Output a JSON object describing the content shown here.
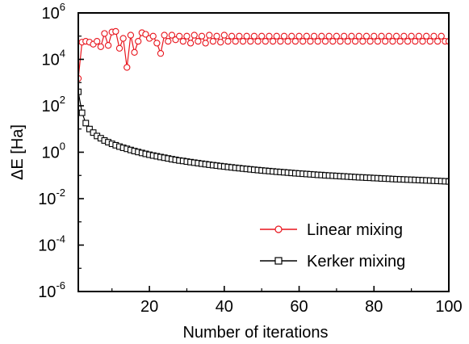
{
  "chart_data": {
    "type": "line",
    "xlabel": "Number of iterations",
    "ylabel": "ΔE [Ha]",
    "xlim": [
      1,
      100
    ],
    "ylim_log10": [
      -6,
      6
    ],
    "y_scale": "log",
    "x_ticks": [
      20,
      40,
      60,
      80,
      100
    ],
    "y_ticks": [
      {
        "base": "10",
        "exp": "6"
      },
      {
        "base": "10",
        "exp": "4"
      },
      {
        "base": "10",
        "exp": "2"
      },
      {
        "base": "10",
        "exp": "0"
      },
      {
        "base": "10",
        "exp": "-2"
      },
      {
        "base": "10",
        "exp": "-4"
      },
      {
        "base": "10",
        "exp": "-6"
      }
    ],
    "legend_position": "bottom-right",
    "series": [
      {
        "name": "Linear mixing",
        "color": "#e8141c",
        "marker": "circle",
        "x": [
          1,
          2,
          3,
          4,
          5,
          6,
          7,
          8,
          9,
          10,
          11,
          12,
          13,
          14,
          15,
          16,
          17,
          18,
          19,
          20,
          21,
          22,
          23,
          24,
          25,
          26,
          27,
          28,
          29,
          30,
          31,
          32,
          33,
          34,
          35,
          36,
          37,
          38,
          39,
          40,
          41,
          42,
          43,
          44,
          45,
          46,
          47,
          48,
          49,
          50,
          51,
          52,
          53,
          54,
          55,
          56,
          57,
          58,
          59,
          60,
          61,
          62,
          63,
          64,
          65,
          66,
          67,
          68,
          69,
          70,
          71,
          72,
          73,
          74,
          75,
          76,
          77,
          78,
          79,
          80,
          81,
          82,
          83,
          84,
          85,
          86,
          87,
          88,
          89,
          90,
          91,
          92,
          93,
          94,
          95,
          96,
          97,
          98,
          99,
          100
        ],
        "y": [
          1500,
          55000,
          60000,
          55000,
          45000,
          60000,
          35000,
          130000,
          40000,
          150000,
          160000,
          30000,
          80000,
          4500,
          110000,
          20000,
          60000,
          140000,
          120000,
          80000,
          100000,
          50000,
          18000,
          110000,
          60000,
          110000,
          70000,
          100000,
          60000,
          100000,
          50000,
          110000,
          60000,
          100000,
          50000,
          110000,
          60000,
          100000,
          55000,
          110000,
          60000,
          100000,
          60000,
          100000,
          60000,
          100000,
          60000,
          100000,
          60000,
          100000,
          60000,
          100000,
          60000,
          100000,
          60000,
          100000,
          60000,
          100000,
          60000,
          100000,
          60000,
          100000,
          60000,
          100000,
          60000,
          100000,
          60000,
          100000,
          60000,
          100000,
          60000,
          100000,
          60000,
          100000,
          60000,
          100000,
          60000,
          100000,
          60000,
          100000,
          60000,
          100000,
          60000,
          100000,
          60000,
          100000,
          60000,
          100000,
          60000,
          100000,
          60000,
          100000,
          60000,
          100000,
          60000,
          100000,
          60000,
          100000,
          60000,
          60000
        ]
      },
      {
        "name": "Kerker mixing",
        "color": "#000000",
        "marker": "square",
        "x": [
          1,
          2,
          3,
          4,
          5,
          6,
          7,
          8,
          9,
          10,
          11,
          12,
          13,
          14,
          15,
          16,
          17,
          18,
          19,
          20,
          21,
          22,
          23,
          24,
          25,
          26,
          27,
          28,
          29,
          30,
          31,
          32,
          33,
          34,
          35,
          36,
          37,
          38,
          39,
          40,
          41,
          42,
          43,
          44,
          45,
          46,
          47,
          48,
          49,
          50,
          51,
          52,
          53,
          54,
          55,
          56,
          57,
          58,
          59,
          60,
          61,
          62,
          63,
          64,
          65,
          66,
          67,
          68,
          69,
          70,
          71,
          72,
          73,
          74,
          75,
          76,
          77,
          78,
          79,
          80,
          81,
          82,
          83,
          84,
          85,
          86,
          87,
          88,
          89,
          90,
          91,
          92,
          93,
          94,
          95,
          96,
          97,
          98,
          99,
          100
        ],
        "y": [
          400,
          50,
          18,
          10,
          7,
          5,
          4,
          3.2,
          2.7,
          2.3,
          2,
          1.75,
          1.55,
          1.4,
          1.25,
          1.12,
          1.02,
          0.93,
          0.85,
          0.78,
          0.72,
          0.67,
          0.62,
          0.58,
          0.54,
          0.5,
          0.47,
          0.44,
          0.42,
          0.395,
          0.375,
          0.355,
          0.337,
          0.32,
          0.305,
          0.29,
          0.277,
          0.265,
          0.253,
          0.242,
          0.232,
          0.222,
          0.213,
          0.205,
          0.197,
          0.19,
          0.183,
          0.176,
          0.17,
          0.164,
          0.159,
          0.154,
          0.149,
          0.144,
          0.14,
          0.136,
          0.132,
          0.128,
          0.124,
          0.121,
          0.118,
          0.115,
          0.112,
          0.109,
          0.106,
          0.104,
          0.101,
          0.099,
          0.097,
          0.095,
          0.093,
          0.091,
          0.089,
          0.087,
          0.085,
          0.083,
          0.082,
          0.08,
          0.079,
          0.077,
          0.076,
          0.074,
          0.073,
          0.072,
          0.07,
          0.069,
          0.068,
          0.067,
          0.066,
          0.065,
          0.064,
          0.063,
          0.062,
          0.061,
          0.06,
          0.059,
          0.058,
          0.057,
          0.056,
          0.055
        ]
      }
    ]
  }
}
